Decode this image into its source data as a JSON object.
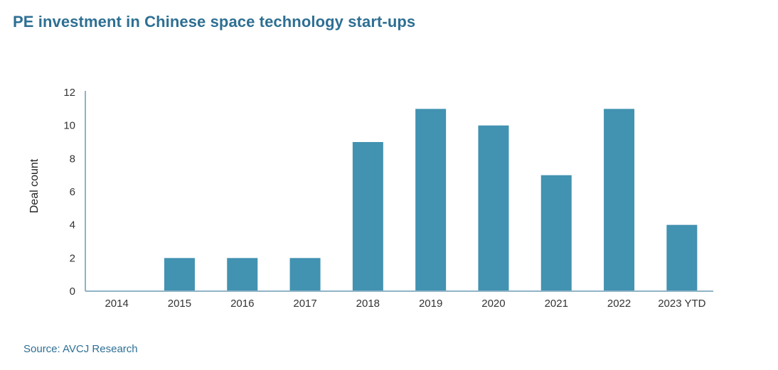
{
  "chart_data": {
    "type": "bar",
    "title": "PE investment in Chinese space technology start-ups",
    "xlabel": "",
    "ylabel": "Deal count",
    "categories": [
      "2014",
      "2015",
      "2016",
      "2017",
      "2018",
      "2019",
      "2020",
      "2021",
      "2022",
      "2023 YTD"
    ],
    "values": [
      0,
      2,
      2,
      2,
      9,
      11,
      10,
      7,
      11,
      4
    ],
    "ylim": [
      0,
      12
    ],
    "yticks": [
      0,
      2,
      4,
      6,
      8,
      10,
      12
    ],
    "grid": false,
    "legend": "none",
    "bar_color": "#4292b1",
    "axis_color": "#8fb3c6"
  },
  "source": "Source: AVCJ Research"
}
